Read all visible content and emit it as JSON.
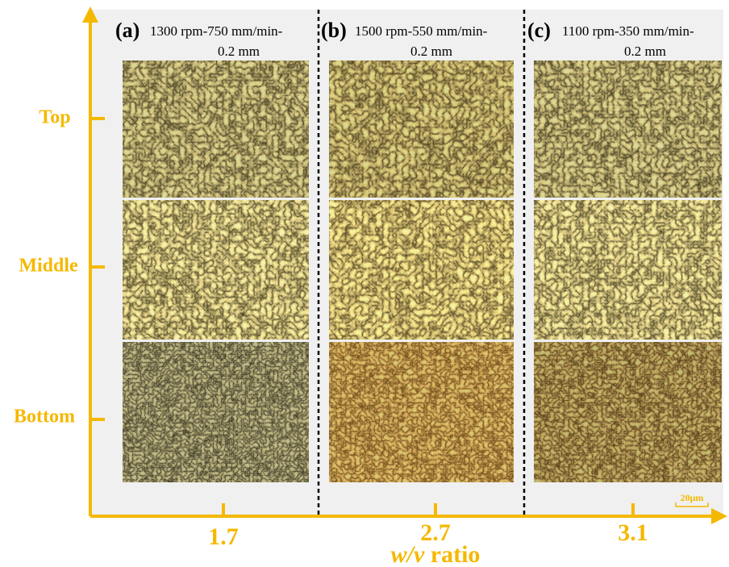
{
  "panels": [
    {
      "label": "(a)",
      "line1": "1300 rpm-750 mm/min-",
      "line2": "0.2 mm"
    },
    {
      "label": "(b)",
      "line1": "1500 rpm-550 mm/min-",
      "line2": "0.2 mm"
    },
    {
      "label": "(c)",
      "line1": "1100 rpm-350 mm/min-",
      "line2": "0.2 mm"
    }
  ],
  "rows": [
    "Top",
    "Middle",
    "Bottom"
  ],
  "x_axis": {
    "ticks": [
      "1.7",
      "2.7",
      "3.1"
    ],
    "title_italic": "w/v",
    "title": "ratio"
  },
  "scale_bar": "20μm"
}
